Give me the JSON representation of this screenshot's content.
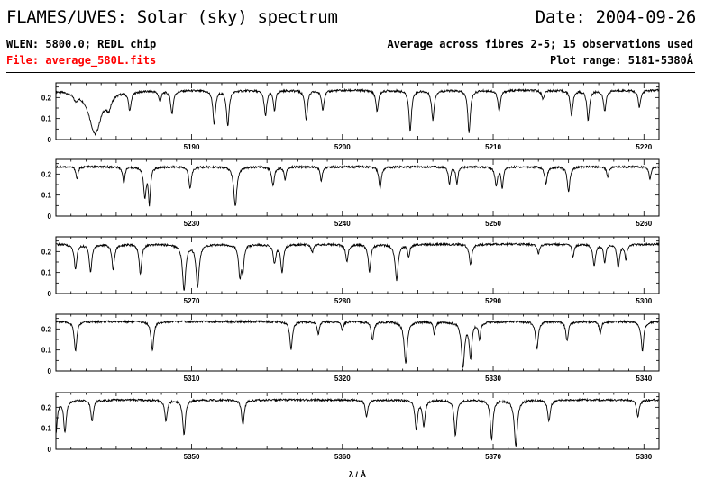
{
  "header": {
    "title": "FLAMES/UVES: Solar (sky) spectrum",
    "date": "Date: 2004-09-26",
    "wlen": "WLEN: 5800.0; REDL chip",
    "file": "File: average_580L.fits",
    "average": "Average across fibres 2-5; 15 observations used",
    "plot_range": "Plot range: 5181-5380Å"
  },
  "colors": {
    "file_text": "#ff0000",
    "line": "#000000"
  },
  "chart_data": {
    "type": "line",
    "title": "FLAMES/UVES: Solar (sky) spectrum",
    "xlabel": "λ / Å",
    "ylabel": "",
    "grid": false,
    "legend": "none",
    "panels": [
      {
        "xlim": [
          5181,
          5221
        ],
        "ylim": [
          0,
          0.27
        ],
        "xticks": [
          5190,
          5200,
          5210,
          5220
        ],
        "yticks": [
          0,
          0.1,
          0.2
        ],
        "continuum": 0.235,
        "lines": [
          [
            5183.6,
            0.205,
            0.7
          ],
          [
            5182.3,
            0.03,
            0.25
          ],
          [
            5184.5,
            0.06,
            0.3
          ],
          [
            5185.9,
            0.09,
            0.15
          ],
          [
            5187.9,
            0.05,
            0.15
          ],
          [
            5188.7,
            0.11,
            0.15
          ],
          [
            5191.5,
            0.16,
            0.15
          ],
          [
            5192.4,
            0.17,
            0.15
          ],
          [
            5194.9,
            0.12,
            0.15
          ],
          [
            5195.5,
            0.1,
            0.12
          ],
          [
            5197.6,
            0.14,
            0.15
          ],
          [
            5198.7,
            0.09,
            0.15
          ],
          [
            5202.3,
            0.1,
            0.15
          ],
          [
            5204.5,
            0.19,
            0.15
          ],
          [
            5206.0,
            0.14,
            0.15
          ],
          [
            5208.4,
            0.2,
            0.15
          ],
          [
            5210.4,
            0.1,
            0.15
          ],
          [
            5213.3,
            0.04,
            0.15
          ],
          [
            5215.2,
            0.12,
            0.15
          ],
          [
            5216.3,
            0.14,
            0.15
          ],
          [
            5217.4,
            0.1,
            0.15
          ],
          [
            5219.7,
            0.08,
            0.15
          ]
        ]
      },
      {
        "xlim": [
          5221,
          5261
        ],
        "ylim": [
          0,
          0.27
        ],
        "xticks": [
          5230,
          5240,
          5250,
          5260
        ],
        "yticks": [
          0,
          0.1,
          0.2
        ],
        "continuum": 0.235,
        "lines": [
          [
            5222.4,
            0.06,
            0.12
          ],
          [
            5225.5,
            0.08,
            0.12
          ],
          [
            5226.9,
            0.14,
            0.15
          ],
          [
            5227.2,
            0.17,
            0.12
          ],
          [
            5229.9,
            0.1,
            0.15
          ],
          [
            5232.9,
            0.19,
            0.18
          ],
          [
            5235.4,
            0.09,
            0.15
          ],
          [
            5236.2,
            0.06,
            0.12
          ],
          [
            5238.6,
            0.07,
            0.12
          ],
          [
            5242.5,
            0.1,
            0.15
          ],
          [
            5247.1,
            0.08,
            0.12
          ],
          [
            5247.6,
            0.08,
            0.12
          ],
          [
            5250.2,
            0.09,
            0.15
          ],
          [
            5250.6,
            0.1,
            0.12
          ],
          [
            5253.5,
            0.08,
            0.15
          ],
          [
            5255.0,
            0.12,
            0.15
          ],
          [
            5257.6,
            0.05,
            0.12
          ],
          [
            5260.4,
            0.06,
            0.12
          ]
        ]
      },
      {
        "xlim": [
          5261,
          5301
        ],
        "ylim": [
          0,
          0.27
        ],
        "xticks": [
          5270,
          5280,
          5290,
          5300
        ],
        "yticks": [
          0,
          0.1,
          0.2
        ],
        "continuum": 0.235,
        "lines": [
          [
            5262.3,
            0.12,
            0.15
          ],
          [
            5263.3,
            0.13,
            0.15
          ],
          [
            5264.8,
            0.12,
            0.15
          ],
          [
            5266.6,
            0.14,
            0.15
          ],
          [
            5269.5,
            0.22,
            0.18
          ],
          [
            5270.4,
            0.2,
            0.18
          ],
          [
            5273.2,
            0.15,
            0.15
          ],
          [
            5273.4,
            0.12,
            0.12
          ],
          [
            5275.5,
            0.09,
            0.15
          ],
          [
            5276.0,
            0.13,
            0.15
          ],
          [
            5278.0,
            0.04,
            0.12
          ],
          [
            5280.3,
            0.08,
            0.15
          ],
          [
            5281.8,
            0.13,
            0.15
          ],
          [
            5283.6,
            0.17,
            0.18
          ],
          [
            5284.4,
            0.06,
            0.12
          ],
          [
            5288.5,
            0.1,
            0.15
          ],
          [
            5293.0,
            0.05,
            0.12
          ],
          [
            5295.3,
            0.06,
            0.12
          ],
          [
            5296.7,
            0.1,
            0.15
          ],
          [
            5297.4,
            0.09,
            0.12
          ],
          [
            5298.3,
            0.11,
            0.15
          ],
          [
            5298.8,
            0.07,
            0.12
          ]
        ]
      },
      {
        "xlim": [
          5301,
          5341
        ],
        "ylim": [
          0,
          0.27
        ],
        "xticks": [
          5310,
          5320,
          5330,
          5340
        ],
        "yticks": [
          0,
          0.1,
          0.2
        ],
        "continuum": 0.235,
        "lines": [
          [
            5302.3,
            0.14,
            0.15
          ],
          [
            5307.4,
            0.14,
            0.15
          ],
          [
            5316.6,
            0.13,
            0.15
          ],
          [
            5318.4,
            0.06,
            0.12
          ],
          [
            5320.0,
            0.04,
            0.12
          ],
          [
            5322.0,
            0.09,
            0.15
          ],
          [
            5324.2,
            0.2,
            0.18
          ],
          [
            5326.1,
            0.06,
            0.12
          ],
          [
            5328.0,
            0.21,
            0.18
          ],
          [
            5328.5,
            0.17,
            0.15
          ],
          [
            5329.1,
            0.08,
            0.12
          ],
          [
            5332.9,
            0.13,
            0.15
          ],
          [
            5334.9,
            0.09,
            0.15
          ],
          [
            5337.1,
            0.06,
            0.12
          ],
          [
            5339.9,
            0.14,
            0.15
          ]
        ]
      },
      {
        "xlim": [
          5341,
          5381
        ],
        "ylim": [
          0,
          0.27
        ],
        "xticks": [
          5350,
          5360,
          5370,
          5380
        ],
        "yticks": [
          0,
          0.1,
          0.2
        ],
        "continuum": 0.235,
        "lines": [
          [
            5341.0,
            0.16,
            0.15
          ],
          [
            5341.6,
            0.15,
            0.15
          ],
          [
            5343.4,
            0.1,
            0.15
          ],
          [
            5348.3,
            0.1,
            0.15
          ],
          [
            5349.5,
            0.17,
            0.15
          ],
          [
            5353.4,
            0.12,
            0.15
          ],
          [
            5361.6,
            0.08,
            0.15
          ],
          [
            5364.9,
            0.14,
            0.15
          ],
          [
            5365.4,
            0.12,
            0.15
          ],
          [
            5367.5,
            0.17,
            0.15
          ],
          [
            5369.9,
            0.19,
            0.15
          ],
          [
            5371.5,
            0.22,
            0.18
          ],
          [
            5373.7,
            0.1,
            0.15
          ],
          [
            5379.6,
            0.08,
            0.15
          ]
        ]
      }
    ]
  }
}
